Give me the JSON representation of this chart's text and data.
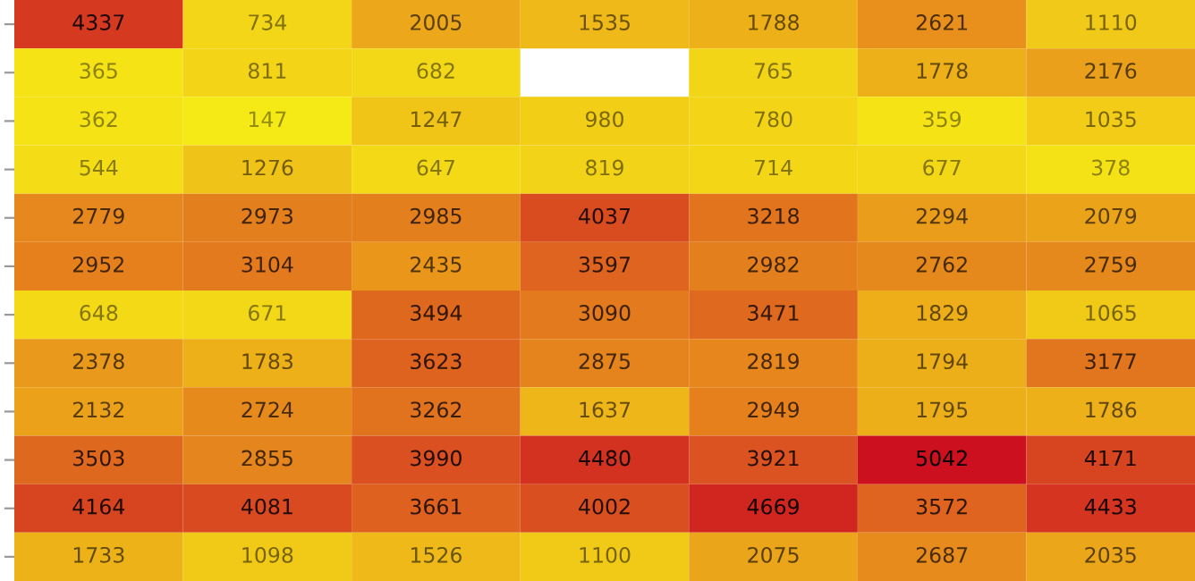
{
  "chart_data": {
    "type": "heatmap",
    "categories": [
      null,
      null,
      null,
      null,
      null,
      null,
      null
    ],
    "y_categories": [
      null,
      null,
      null,
      null,
      null,
      null,
      null,
      null,
      null,
      null,
      null,
      null
    ],
    "cells": [
      [
        4337,
        734,
        2005,
        1535,
        1788,
        2621,
        1110
      ],
      [
        365,
        811,
        682,
        null,
        765,
        1778,
        2176
      ],
      [
        362,
        147,
        1247,
        980,
        780,
        359,
        1035
      ],
      [
        544,
        1276,
        647,
        819,
        714,
        677,
        378
      ],
      [
        2779,
        2973,
        2985,
        4037,
        3218,
        2294,
        2079
      ],
      [
        2952,
        3104,
        2435,
        3597,
        2982,
        2762,
        2759
      ],
      [
        648,
        671,
        3494,
        3090,
        3471,
        1829,
        1065
      ],
      [
        2378,
        1783,
        3623,
        2875,
        2819,
        1794,
        3177
      ],
      [
        2132,
        2724,
        3262,
        1637,
        2949,
        1795,
        1786
      ],
      [
        3503,
        2855,
        3990,
        4480,
        3921,
        5042,
        4171
      ],
      [
        4164,
        4081,
        3661,
        4002,
        4669,
        3572,
        4433
      ],
      [
        1733,
        1098,
        1526,
        1100,
        2075,
        2687,
        2035
      ]
    ],
    "data_labels": true
  }
}
